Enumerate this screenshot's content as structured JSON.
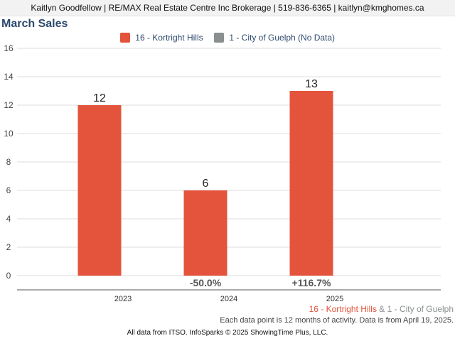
{
  "header": {
    "agent_line": "Kaitlyn Goodfellow | RE/MAX Real Estate Centre Inc Brokerage | 519-836-6365 | kaitlyn@kmghomes.ca"
  },
  "legend": {
    "items": [
      {
        "label": "16 - Kortright Hills",
        "color": "#e4533b"
      },
      {
        "label": "1 - City of Guelph (No Data)",
        "color": "#8a8f8f"
      }
    ]
  },
  "chart_data": {
    "type": "bar",
    "title": "March Sales",
    "categories": [
      "2023",
      "2024",
      "2025"
    ],
    "series": [
      {
        "name": "16 - Kortright Hills",
        "color": "#e4533b",
        "values": [
          12,
          6,
          13
        ],
        "data_labels": [
          "12",
          "6",
          "13"
        ]
      }
    ],
    "change_labels": [
      "",
      "-50.0%",
      "+116.7%"
    ],
    "y_ticks": [
      0,
      2,
      4,
      6,
      8,
      10,
      12,
      14,
      16
    ],
    "ylim": [
      -1,
      16
    ],
    "xlabel": "",
    "ylabel": "",
    "grid": true,
    "legend_position": "top-center"
  },
  "footer": {
    "area_primary": "16 - Kortright Hills",
    "joiner": " & ",
    "area_secondary": "1 - City of Guelph",
    "primary_color": "#e4533b",
    "secondary_color": "#8a8f8f",
    "note": "Each data point is 12 months of activity. Data is from April 19, 2025.",
    "credit": "All data from ITSO. InfoSparks © 2025 ShowingTime Plus, LLC."
  }
}
